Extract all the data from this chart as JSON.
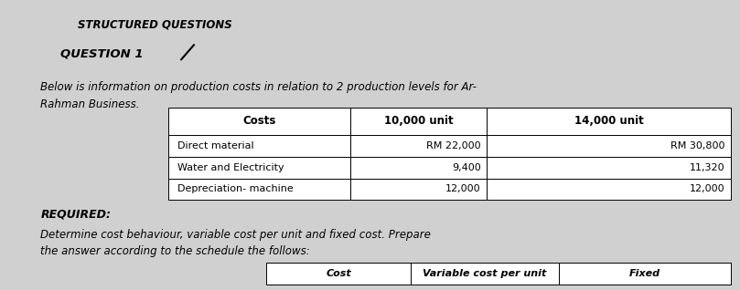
{
  "bg_color": "#c8c8c8",
  "title1": "STRUCTURED QUESTIONS",
  "title2": "QUESTION 1",
  "intro_text1": "Below is information on production costs in relation to 2 production levels for Ar-",
  "intro_text2": "Rahman Business.",
  "table_headers": [
    "Costs",
    "10,000 unit",
    "14,000 unit"
  ],
  "table_rows": [
    [
      "Direct material",
      "RM 22,000",
      "RM 30,800"
    ],
    [
      "Water and Electricity",
      "9,400",
      "11,320"
    ],
    [
      "Depreciation- machine",
      "12,000",
      "12,000"
    ]
  ],
  "required_label": "REQUIRED:",
  "required_text1": "Determine cost behaviour, variable cost per unit and fixed cost. Prepare",
  "required_text2": "the answer according to the schedule the follows:",
  "bottom_headers": [
    "Cost",
    "Variable cost per unit",
    "Fixed"
  ],
  "header_fontsize": 8.5,
  "body_fontsize": 8,
  "title1_fontsize": 8.5,
  "title2_fontsize": 9.5,
  "intro_fontsize": 8.5,
  "required_fontsize": 9
}
